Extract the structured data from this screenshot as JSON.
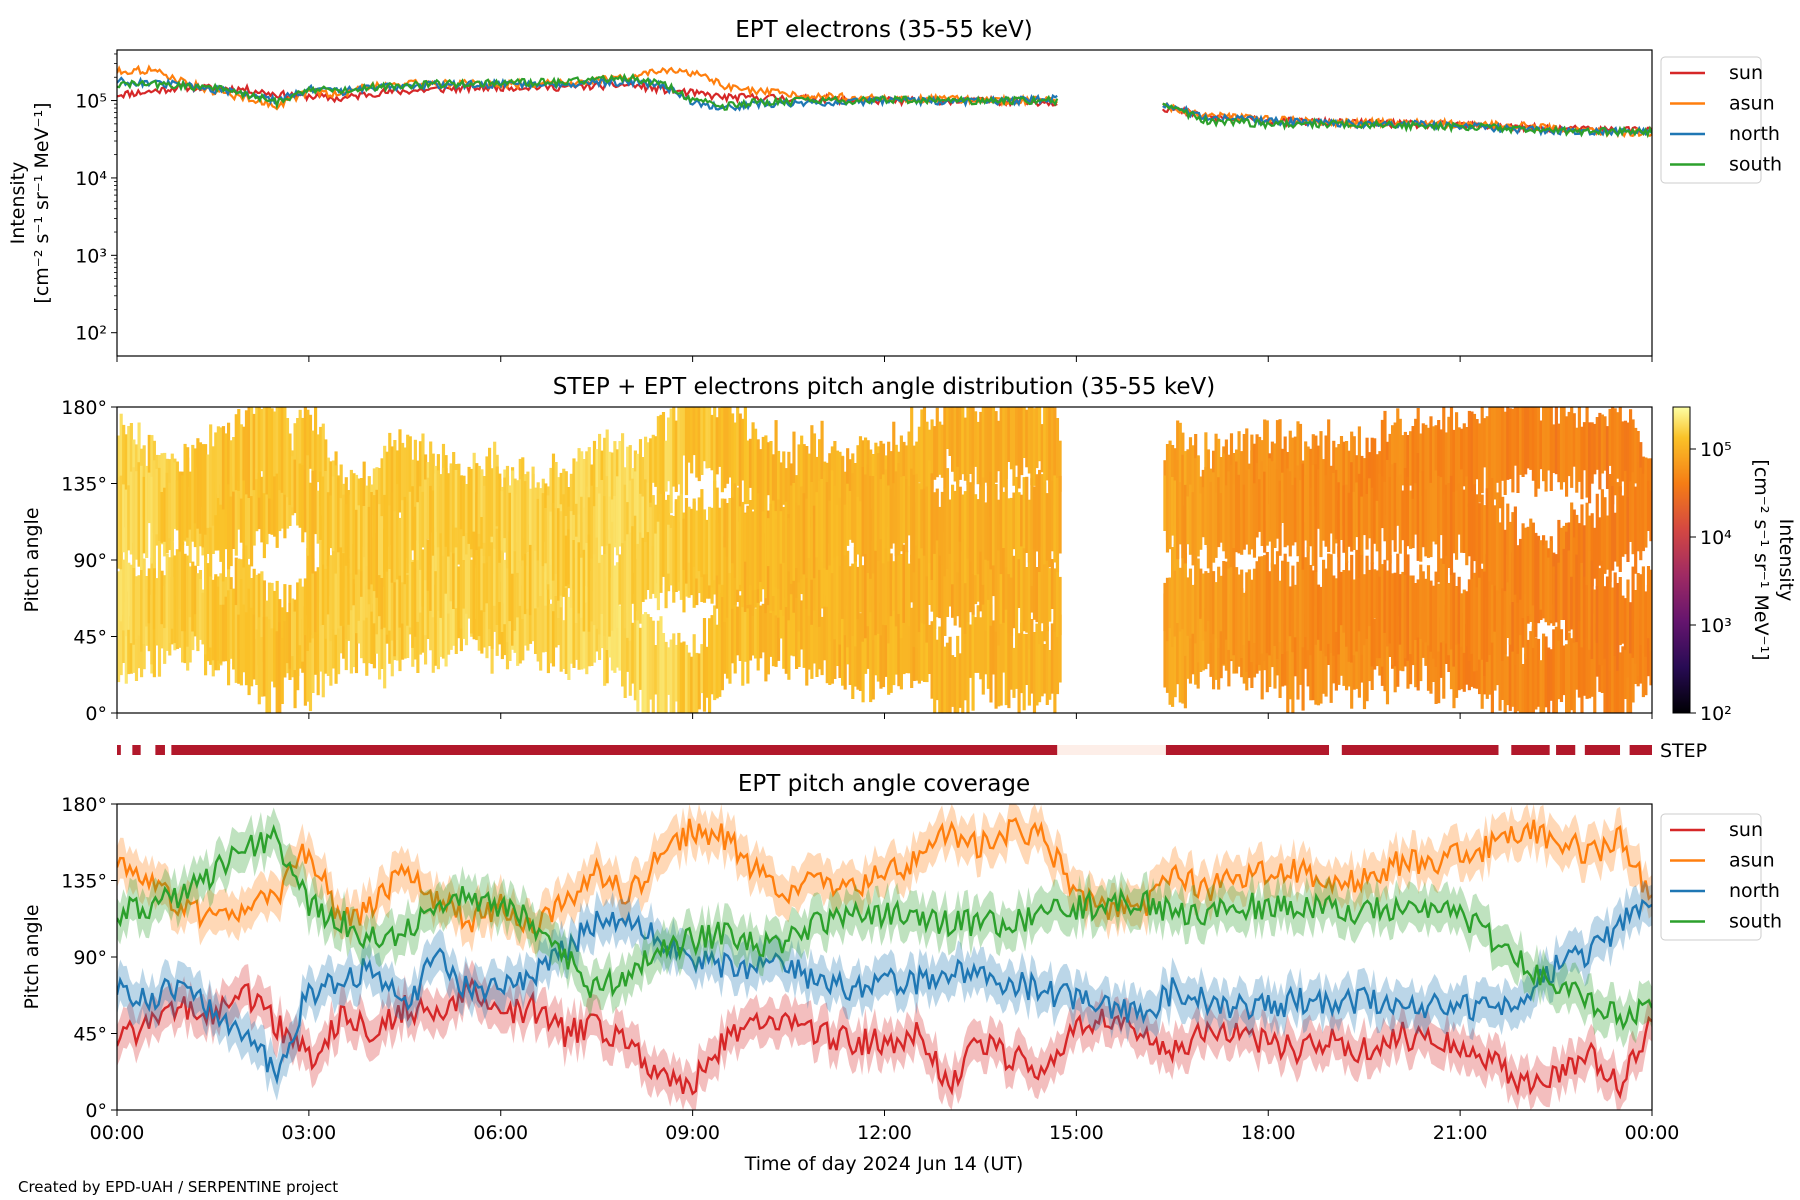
{
  "footer": {
    "credit": "Created by EPD-UAH / SERPENTINE project"
  },
  "colors": {
    "sun": "#d62728",
    "asun": "#ff7f0e",
    "north": "#1f77b4",
    "south": "#2ca02c",
    "step_bar": "#b2182b",
    "step_gap": "#fdeee8"
  },
  "chart_data": [
    {
      "type": "line",
      "title": "EPT electrons (35-55 keV)",
      "ylabel": "Intensity",
      "ylabel_units": "[cm⁻² s⁻¹ sr⁻¹ MeV⁻¹]",
      "yscale": "log",
      "ylim": [
        50,
        450000
      ],
      "yticks": [
        100,
        1000,
        10000,
        100000
      ],
      "ytick_labels": [
        "10²",
        "10³",
        "10⁴",
        "10⁵"
      ],
      "xlim_hours": [
        0,
        24
      ],
      "data_gap_hours": [
        14.7,
        16.35
      ],
      "legend": "right-top",
      "series": [
        {
          "name": "sun",
          "color": "#d62728",
          "x": [
            0,
            0.5,
            1,
            1.5,
            2,
            2.5,
            3,
            3.5,
            4,
            5,
            6,
            7,
            8,
            8.5,
            9,
            9.5,
            10,
            11,
            12,
            13,
            14,
            14.7,
            16.4,
            17,
            18,
            19,
            20,
            21,
            22,
            23,
            24
          ],
          "y": [
            120000,
            130000,
            150000,
            145000,
            140000,
            120000,
            115000,
            105000,
            125000,
            140000,
            150000,
            150000,
            160000,
            140000,
            125000,
            110000,
            110000,
            105000,
            100000,
            100000,
            98000,
            95000,
            80000,
            62000,
            55000,
            52000,
            50000,
            48000,
            45000,
            42000,
            42000
          ]
        },
        {
          "name": "asun",
          "color": "#ff7f0e",
          "x": [
            0,
            0.5,
            1,
            1.5,
            2,
            2.5,
            3,
            3.5,
            4,
            5,
            6,
            7,
            8,
            8.5,
            9,
            9.5,
            10,
            11,
            12,
            13,
            14,
            14.7,
            16.4,
            17,
            18,
            19,
            20,
            21,
            22,
            23,
            24
          ],
          "y": [
            240000,
            250000,
            180000,
            130000,
            110000,
            85000,
            130000,
            120000,
            160000,
            170000,
            160000,
            170000,
            200000,
            240000,
            230000,
            150000,
            130000,
            115000,
            105000,
            105000,
            100000,
            102000,
            85000,
            64000,
            57000,
            52000,
            52000,
            50000,
            47000,
            40000,
            38000
          ]
        },
        {
          "name": "north",
          "color": "#1f77b4",
          "x": [
            0,
            0.5,
            1,
            1.5,
            2,
            2.5,
            3,
            3.5,
            4,
            5,
            6,
            7,
            8,
            8.5,
            9,
            9.5,
            10,
            11,
            12,
            13,
            14,
            14.7,
            16.4,
            17,
            18,
            19,
            20,
            21,
            22,
            23,
            24
          ],
          "y": [
            180000,
            170000,
            160000,
            140000,
            120000,
            100000,
            140000,
            130000,
            150000,
            160000,
            165000,
            165000,
            175000,
            160000,
            95000,
            80000,
            90000,
            95000,
            100000,
            98000,
            100000,
            105000,
            88000,
            60000,
            55000,
            50000,
            50000,
            47000,
            42000,
            40000,
            40000
          ]
        },
        {
          "name": "south",
          "color": "#2ca02c",
          "x": [
            0,
            0.5,
            1,
            1.5,
            2,
            2.5,
            3,
            3.5,
            4,
            5,
            6,
            7,
            8,
            8.5,
            9,
            9.5,
            10,
            11,
            12,
            13,
            14,
            14.7,
            16.4,
            17,
            18,
            19,
            20,
            21,
            22,
            23,
            24
          ],
          "y": [
            160000,
            165000,
            155000,
            150000,
            120000,
            95000,
            140000,
            135000,
            150000,
            165000,
            170000,
            175000,
            200000,
            165000,
            100000,
            85000,
            95000,
            100000,
            102000,
            100000,
            100000,
            100000,
            85000,
            55000,
            50000,
            50000,
            48000,
            46000,
            43000,
            40000,
            40000
          ]
        }
      ]
    },
    {
      "type": "heatmap",
      "title": "STEP + EPT electrons pitch angle distribution (35-55 keV)",
      "ylabel": "Pitch angle",
      "ylim": [
        0,
        180
      ],
      "yticks": [
        0,
        45,
        90,
        135,
        180
      ],
      "ytick_labels": [
        "0°",
        "45°",
        "90°",
        "135°",
        "180°"
      ],
      "xlim_hours": [
        0,
        24
      ],
      "data_gap_hours": [
        14.75,
        16.35
      ],
      "colorbar": {
        "label": "Intensity",
        "units": "[cm⁻² s⁻¹ sr⁻¹ MeV⁻¹]",
        "scale": "log",
        "range": [
          100,
          300000
        ],
        "ticks": [
          100,
          1000,
          10000,
          100000
        ],
        "tick_labels": [
          "10²",
          "10³",
          "10⁴",
          "10⁵"
        ],
        "colormap": "inferno"
      },
      "intensity_by_hour": {
        "x": [
          0,
          1,
          2,
          3,
          4,
          5,
          6,
          7,
          8,
          9,
          10,
          11,
          12,
          13,
          14,
          14.7,
          16.4,
          18,
          20,
          22,
          24
        ],
        "y": [
          170000,
          150000,
          130000,
          140000,
          150000,
          160000,
          160000,
          165000,
          180000,
          140000,
          110000,
          105000,
          100000,
          100000,
          98000,
          95000,
          80000,
          55000,
          50000,
          46000,
          42000
        ]
      }
    },
    {
      "type": "timeline",
      "label": "STEP",
      "xlim_hours": [
        0,
        24
      ],
      "segments_hours": [
        [
          0,
          0.06
        ],
        [
          0.24,
          0.37
        ],
        [
          0.6,
          0.75
        ],
        [
          0.85,
          14.7
        ],
        [
          16.4,
          18.95
        ],
        [
          19.15,
          21.6
        ],
        [
          21.8,
          22.4
        ],
        [
          22.5,
          22.8
        ],
        [
          22.95,
          23.5
        ],
        [
          23.65,
          24
        ]
      ],
      "gap_hours": [
        14.7,
        16.4
      ]
    },
    {
      "type": "line",
      "title": "EPT pitch angle coverage",
      "ylabel": "Pitch angle",
      "xlabel": "Time of day 2024 Jun 14 (UT)",
      "ylim": [
        0,
        180
      ],
      "yticks": [
        0,
        45,
        90,
        135,
        180
      ],
      "ytick_labels": [
        "0°",
        "45°",
        "90°",
        "135°",
        "180°"
      ],
      "xlim_hours": [
        0,
        24
      ],
      "xticks_hours": [
        0,
        3,
        6,
        9,
        12,
        15,
        18,
        21,
        24
      ],
      "xtick_labels": [
        "00:00",
        "03:00",
        "06:00",
        "09:00",
        "12:00",
        "15:00",
        "18:00",
        "21:00",
        "00:00"
      ],
      "band_halfwidth_deg": 12,
      "legend": "right-top",
      "series": [
        {
          "name": "sun",
          "color": "#d62728",
          "x": [
            0,
            0.5,
            1,
            1.5,
            2,
            2.5,
            3,
            3.5,
            4,
            4.5,
            5,
            5.5,
            6,
            6.5,
            7,
            7.5,
            8,
            8.5,
            9,
            9.5,
            10,
            10.5,
            11,
            11.5,
            12,
            12.5,
            13,
            13.5,
            14,
            14.5,
            15,
            15.5,
            16,
            16.5,
            17,
            17.5,
            18,
            18.5,
            19,
            19.5,
            20,
            20.5,
            21,
            21.5,
            22,
            22.5,
            23,
            23.5,
            24
          ],
          "y": [
            40,
            50,
            60,
            55,
            70,
            50,
            30,
            55,
            45,
            60,
            55,
            70,
            55,
            60,
            45,
            50,
            40,
            20,
            15,
            40,
            55,
            50,
            45,
            40,
            40,
            45,
            15,
            40,
            30,
            25,
            50,
            55,
            45,
            35,
            45,
            45,
            40,
            35,
            40,
            35,
            45,
            40,
            40,
            30,
            15,
            20,
            35,
            15,
            50
          ]
        },
        {
          "name": "asun",
          "color": "#ff7f0e",
          "x": [
            0,
            0.5,
            1,
            1.5,
            2,
            2.5,
            3,
            3.5,
            4,
            4.5,
            5,
            5.5,
            6,
            6.5,
            7,
            7.5,
            8,
            8.5,
            9,
            9.5,
            10,
            10.5,
            11,
            11.5,
            12,
            12.5,
            13,
            13.5,
            14,
            14.5,
            15,
            15.5,
            16,
            16.5,
            17,
            17.5,
            18,
            18.5,
            19,
            19.5,
            20,
            20.5,
            21,
            21.5,
            22,
            22.5,
            23,
            23.5,
            24
          ],
          "y": [
            145,
            135,
            120,
            110,
            120,
            125,
            155,
            110,
            120,
            140,
            125,
            110,
            120,
            110,
            120,
            140,
            125,
            150,
            165,
            160,
            140,
            130,
            135,
            130,
            140,
            145,
            165,
            155,
            165,
            160,
            125,
            120,
            115,
            140,
            130,
            135,
            140,
            140,
            135,
            135,
            145,
            145,
            150,
            155,
            165,
            160,
            150,
            160,
            125
          ]
        },
        {
          "name": "north",
          "color": "#1f77b4",
          "x": [
            0,
            0.5,
            1,
            1.5,
            2,
            2.5,
            3,
            3.5,
            4,
            4.5,
            5,
            5.5,
            6,
            6.5,
            7,
            7.5,
            8,
            8.5,
            9,
            9.5,
            10,
            10.5,
            11,
            11.5,
            12,
            12.5,
            13,
            13.5,
            14,
            14.5,
            15,
            15.5,
            16,
            16.5,
            17,
            17.5,
            18,
            18.5,
            19,
            19.5,
            20,
            20.5,
            21,
            21.5,
            22,
            22.5,
            23,
            23.5,
            24
          ],
          "y": [
            70,
            65,
            75,
            55,
            40,
            25,
            70,
            75,
            85,
            60,
            90,
            70,
            75,
            80,
            95,
            110,
            115,
            100,
            90,
            85,
            85,
            85,
            75,
            70,
            75,
            75,
            80,
            80,
            75,
            70,
            65,
            60,
            55,
            70,
            65,
            60,
            60,
            65,
            60,
            65,
            60,
            60,
            60,
            60,
            65,
            85,
            90,
            110,
            120
          ]
        },
        {
          "name": "south",
          "color": "#2ca02c",
          "x": [
            0,
            0.5,
            1,
            1.5,
            2,
            2.5,
            3,
            3.5,
            4,
            4.5,
            5,
            5.5,
            6,
            6.5,
            7,
            7.5,
            8,
            8.5,
            9,
            9.5,
            10,
            10.5,
            11,
            11.5,
            12,
            12.5,
            13,
            13.5,
            14,
            14.5,
            15,
            15.5,
            16,
            16.5,
            17,
            17.5,
            18,
            18.5,
            19,
            19.5,
            20,
            20.5,
            21,
            21.5,
            22,
            22.5,
            23,
            23.5,
            24
          ],
          "y": [
            115,
            120,
            125,
            140,
            155,
            160,
            120,
            110,
            100,
            105,
            120,
            125,
            120,
            110,
            90,
            70,
            80,
            95,
            100,
            105,
            95,
            100,
            110,
            115,
            115,
            115,
            110,
            110,
            110,
            115,
            120,
            120,
            125,
            115,
            115,
            120,
            120,
            120,
            120,
            115,
            120,
            115,
            115,
            100,
            85,
            70,
            65,
            55,
            60
          ]
        }
      ]
    }
  ]
}
